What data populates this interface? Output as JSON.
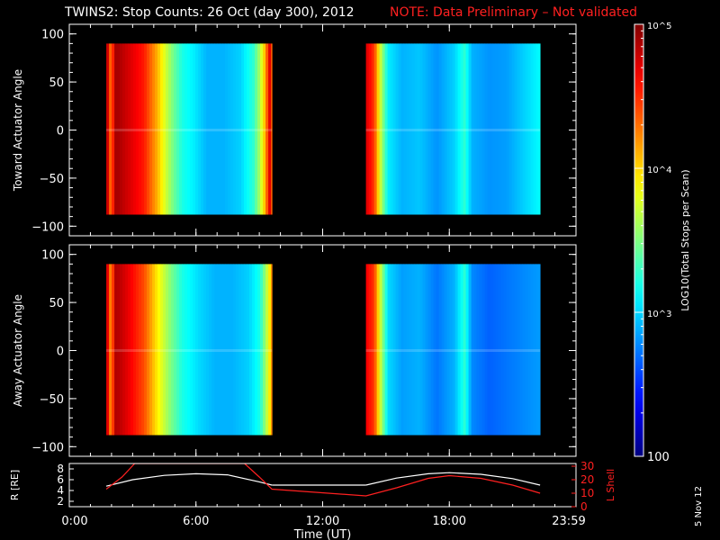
{
  "title": {
    "main": "TWINS2: Stop Counts: 26 Oct (day 300), 2012",
    "note": "NOTE: Data Preliminary – Not validated"
  },
  "date_stamp": "5 Nov 12",
  "colors": {
    "background": "#000000",
    "axis": "#ffffff",
    "note": "#ff2020",
    "r_trace": "#ffffff",
    "l_trace": "#ff2020"
  },
  "chart_data": [
    {
      "type": "heatmap",
      "panel": "toward",
      "ylabel": "Toward Actuator Angle",
      "ylim": [
        -110,
        110
      ],
      "yticks": [
        "100",
        "50",
        "0",
        "−50",
        "−100"
      ],
      "xlim": [
        0,
        24
      ],
      "data_blocks": [
        {
          "t_start": 1.75,
          "t_end": 9.6,
          "angle_min": -88,
          "angle_max": 90,
          "profile": [
            [
              0,
              0.92
            ],
            [
              0.02,
              0.75
            ],
            [
              0.05,
              0.97
            ],
            [
              0.12,
              0.92
            ],
            [
              0.22,
              0.85
            ],
            [
              0.3,
              0.7
            ],
            [
              0.35,
              0.58
            ],
            [
              0.4,
              0.48
            ],
            [
              0.45,
              0.4
            ],
            [
              0.52,
              0.36
            ],
            [
              0.6,
              0.3
            ],
            [
              0.7,
              0.3
            ],
            [
              0.8,
              0.33
            ],
            [
              0.88,
              0.42
            ],
            [
              0.92,
              0.55
            ],
            [
              0.95,
              0.7
            ],
            [
              0.98,
              0.92
            ],
            [
              1.0,
              0.72
            ]
          ]
        },
        {
          "t_start": 14.05,
          "t_end": 22.3,
          "angle_min": -88,
          "angle_max": 90,
          "profile": [
            [
              0,
              0.9
            ],
            [
              0.04,
              0.82
            ],
            [
              0.08,
              0.55
            ],
            [
              0.12,
              0.36
            ],
            [
              0.2,
              0.3
            ],
            [
              0.3,
              0.32
            ],
            [
              0.4,
              0.27
            ],
            [
              0.5,
              0.33
            ],
            [
              0.56,
              0.42
            ],
            [
              0.6,
              0.3
            ],
            [
              0.7,
              0.27
            ],
            [
              0.8,
              0.28
            ],
            [
              0.9,
              0.33
            ],
            [
              1.0,
              0.38
            ]
          ]
        }
      ]
    },
    {
      "type": "heatmap",
      "panel": "away",
      "ylabel": "Away Actuator Angle",
      "ylim": [
        -110,
        110
      ],
      "yticks": [
        "100",
        "50",
        "0",
        "−50",
        "−100"
      ],
      "xlim": [
        0,
        24
      ],
      "data_blocks": [
        {
          "t_start": 1.75,
          "t_end": 9.6,
          "angle_min": -88,
          "angle_max": 90,
          "profile": [
            [
              0,
              0.9
            ],
            [
              0.02,
              0.72
            ],
            [
              0.05,
              0.96
            ],
            [
              0.12,
              0.9
            ],
            [
              0.22,
              0.8
            ],
            [
              0.3,
              0.64
            ],
            [
              0.38,
              0.5
            ],
            [
              0.45,
              0.4
            ],
            [
              0.55,
              0.34
            ],
            [
              0.65,
              0.3
            ],
            [
              0.75,
              0.3
            ],
            [
              0.85,
              0.33
            ],
            [
              0.92,
              0.4
            ],
            [
              0.97,
              0.6
            ],
            [
              1.0,
              0.78
            ]
          ]
        },
        {
          "t_start": 14.05,
          "t_end": 22.3,
          "angle_min": -88,
          "angle_max": 90,
          "profile": [
            [
              0,
              0.88
            ],
            [
              0.04,
              0.82
            ],
            [
              0.08,
              0.55
            ],
            [
              0.12,
              0.34
            ],
            [
              0.2,
              0.28
            ],
            [
              0.3,
              0.3
            ],
            [
              0.4,
              0.24
            ],
            [
              0.5,
              0.3
            ],
            [
              0.56,
              0.42
            ],
            [
              0.6,
              0.26
            ],
            [
              0.7,
              0.22
            ],
            [
              0.8,
              0.24
            ],
            [
              0.9,
              0.26
            ],
            [
              1.0,
              0.28
            ]
          ]
        }
      ]
    },
    {
      "type": "line",
      "panel": "ephemeris",
      "ylabel_left": "R [RE]",
      "ylabel_right": "L Shell",
      "yticks_left": [
        "8",
        "6",
        "4",
        "2"
      ],
      "yticks_right": [
        "30",
        "20",
        "10",
        "0"
      ],
      "ylim_left": [
        1,
        9
      ],
      "ylim_right": [
        0,
        32
      ],
      "xlabel": "Time (UT)",
      "xlim": [
        0,
        24
      ],
      "xticks": [
        "0:00",
        "6:00",
        "12:00",
        "18:00",
        "23:59"
      ],
      "series": [
        {
          "axis": "left",
          "x": [
            1.75,
            3,
            4.5,
            6,
            7.5,
            9,
            9.6,
            14.05,
            15.5,
            17,
            18,
            19.5,
            21,
            22.3
          ],
          "y": [
            4.8,
            6.0,
            6.8,
            7.1,
            6.9,
            5.6,
            5.0,
            5.0,
            6.3,
            7.1,
            7.3,
            7.0,
            6.2,
            5.0
          ]
        },
        {
          "axis": "right",
          "x": [
            1.75,
            2.5,
            3.1,
            8.3,
            9.0,
            9.6,
            14.05,
            15.5,
            17,
            18,
            19.5,
            21,
            22.3
          ],
          "y": [
            13,
            22,
            32,
            32,
            22,
            13,
            8,
            14,
            21,
            23,
            21,
            16,
            10
          ]
        }
      ]
    },
    {
      "type": "colorbar",
      "label": "LOG10(Total Stops per Scan)",
      "scale": "log",
      "range": [
        100,
        100000
      ],
      "tick_labels": [
        "10^5",
        "10^4",
        "10^3",
        "100"
      ]
    }
  ]
}
